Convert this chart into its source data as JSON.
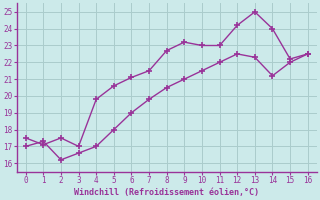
{
  "xlabel": "Windchill (Refroidissement éolien,°C)",
  "bg_color": "#cceaea",
  "grid_color": "#aacccc",
  "line_color": "#993399",
  "marker_color": "#993399",
  "xlim": [
    -0.5,
    16.5
  ],
  "ylim": [
    15.5,
    25.5
  ],
  "xticks": [
    0,
    1,
    2,
    3,
    4,
    5,
    6,
    7,
    8,
    9,
    10,
    11,
    12,
    13,
    14,
    15,
    16
  ],
  "yticks": [
    16,
    17,
    18,
    19,
    20,
    21,
    22,
    23,
    24,
    25
  ],
  "line1_x": [
    0,
    1,
    2,
    3,
    4,
    5,
    6,
    7,
    8,
    9,
    10,
    11,
    12,
    13,
    14,
    15,
    16
  ],
  "line1_y": [
    17.5,
    17.1,
    17.5,
    17.0,
    19.8,
    20.6,
    21.1,
    21.5,
    22.7,
    23.2,
    23.0,
    23.0,
    24.2,
    25.0,
    24.0,
    22.2,
    22.5
  ],
  "line2_x": [
    0,
    1,
    2,
    3,
    4,
    5,
    6,
    7,
    8,
    9,
    10,
    11,
    12,
    13,
    14,
    15,
    16
  ],
  "line2_y": [
    17.0,
    17.3,
    16.2,
    16.6,
    17.0,
    18.0,
    19.0,
    19.8,
    20.5,
    21.0,
    21.5,
    22.0,
    22.5,
    22.3,
    21.2,
    22.0,
    22.5
  ]
}
